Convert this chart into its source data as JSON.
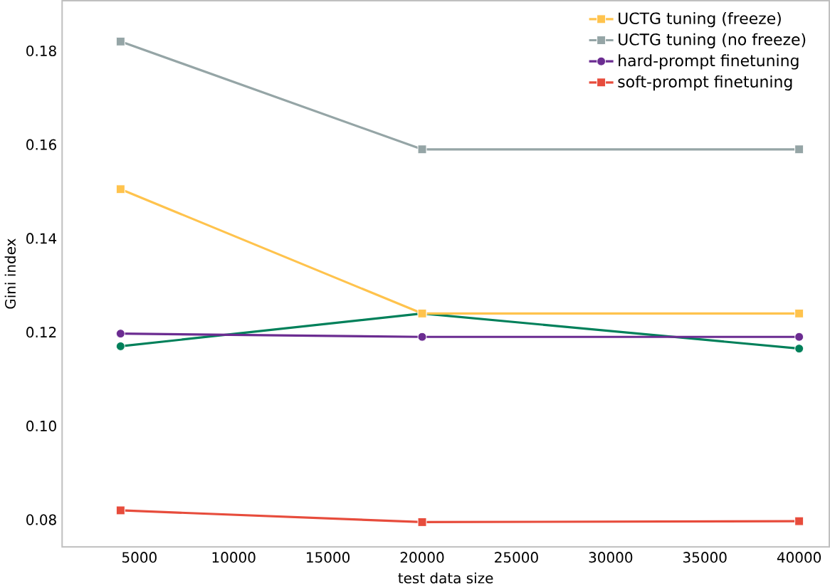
{
  "chart_data": {
    "type": "line",
    "xlabel": "test data size",
    "ylabel": "Gini index",
    "x": [
      4000,
      20000,
      40000
    ],
    "series": [
      {
        "color": "#00805a",
        "marker": "circle",
        "values": [
          0.117,
          0.124,
          0.1165
        ]
      },
      {
        "name": "UCTG tuning (freeze)",
        "color": "#ffc34d",
        "marker": "square",
        "values": [
          0.1505,
          0.124,
          0.124
        ]
      },
      {
        "name": "UCTG tuning (no freeze)",
        "color": "#95a5a6",
        "marker": "square",
        "values": [
          0.182,
          0.159,
          0.159
        ]
      },
      {
        "name": "hard-prompt finetuning",
        "color": "#6b2c91",
        "marker": "circle",
        "values": [
          0.1197,
          0.119,
          0.119
        ]
      },
      {
        "name": "soft-prompt finetuning",
        "color": "#e74c3c",
        "marker": "square",
        "values": [
          0.082,
          0.0795,
          0.0797
        ]
      }
    ],
    "xlim": [
      900,
      41600
    ],
    "ylim": [
      0.0742,
      0.1907
    ],
    "xticks": [
      5000,
      10000,
      15000,
      20000,
      25000,
      30000,
      35000,
      40000
    ],
    "yticks": [
      {
        "value": 0.08,
        "label": "0.08"
      },
      {
        "value": 0.1,
        "label": "0.10"
      },
      {
        "value": 0.12,
        "label": "0.12"
      },
      {
        "value": 0.14,
        "label": "0.14"
      },
      {
        "value": 0.16,
        "label": "0.16"
      },
      {
        "value": 0.18,
        "label": "0.18"
      }
    ],
    "grid": false,
    "legend": "top right",
    "line_style": "solid"
  }
}
